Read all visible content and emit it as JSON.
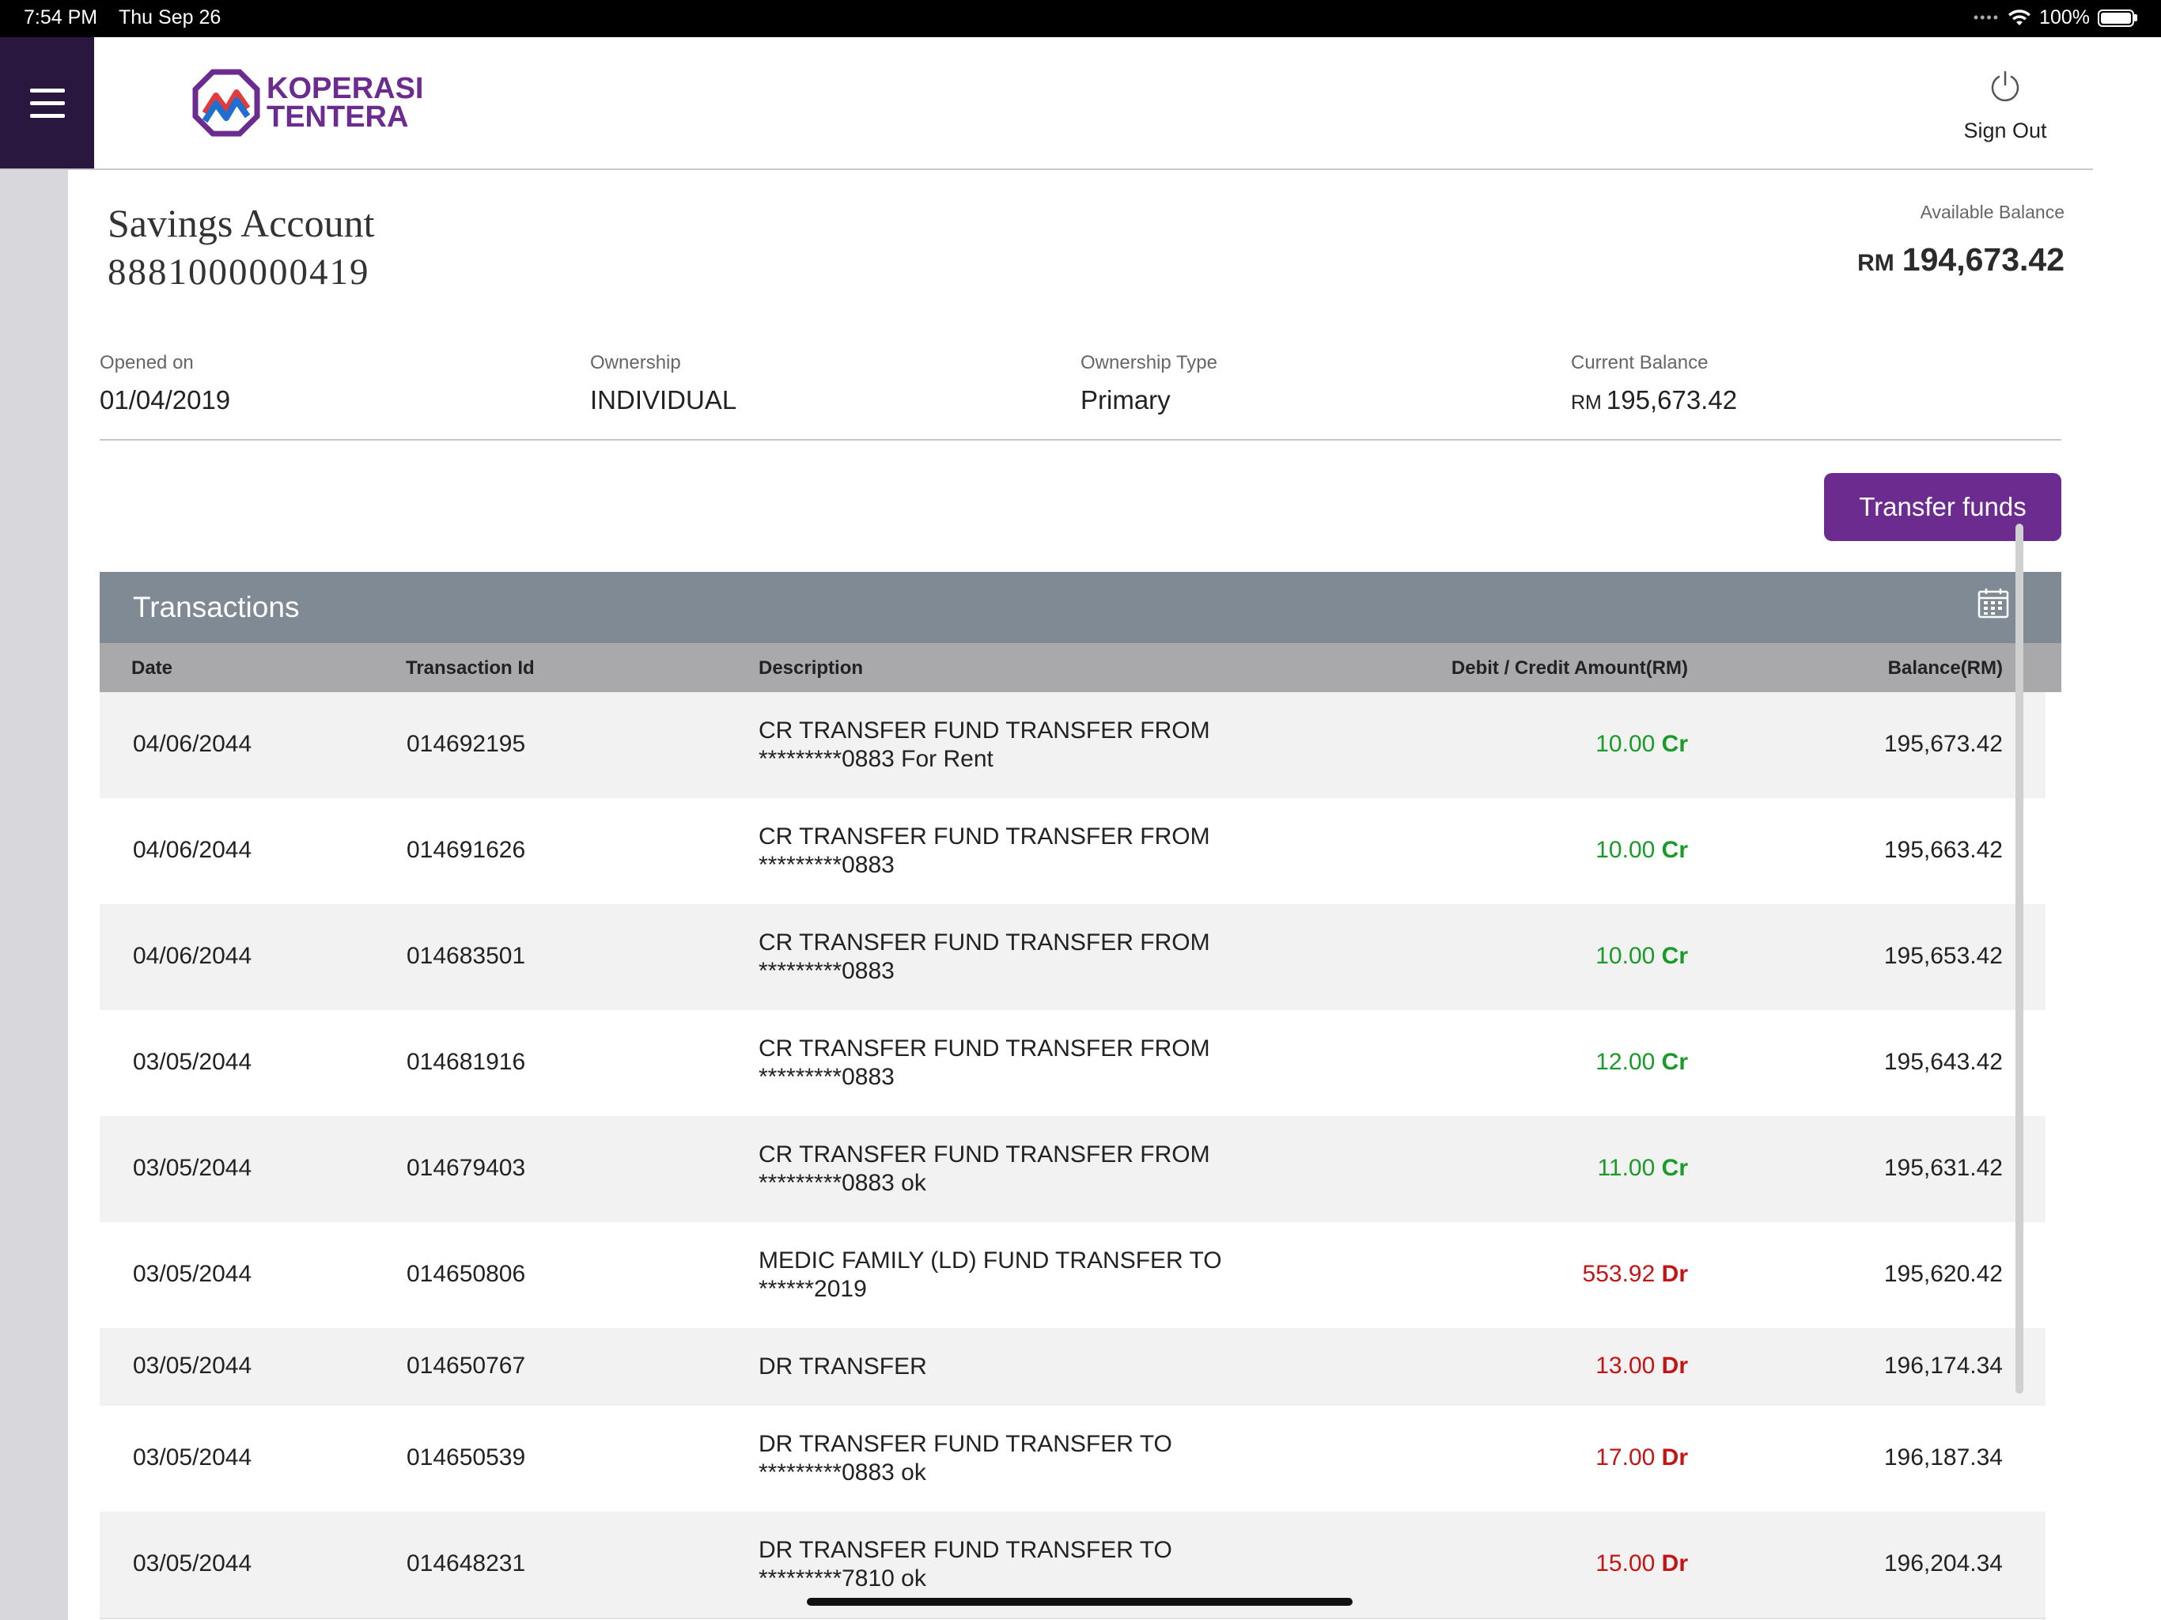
{
  "status_bar": {
    "time": "7:54 PM",
    "date": "Thu Sep 26",
    "battery": "100%"
  },
  "header": {
    "logo_line1": "KOPERASI",
    "logo_line2": "TENTERA",
    "sign_out": "Sign Out",
    "icons": {
      "menu": "menu-icon",
      "power": "power-icon"
    }
  },
  "account": {
    "title": "Savings Account",
    "number": "8881000000419",
    "available_label": "Available Balance",
    "available_currency": "RM",
    "available_amount": "194,673.42",
    "opened_label": "Opened on",
    "opened_value": "01/04/2019",
    "ownership_label": "Ownership",
    "ownership_value": "INDIVIDUAL",
    "ownership_type_label": "Ownership Type",
    "ownership_type_value": "Primary",
    "current_label": "Current Balance",
    "current_currency": "RM",
    "current_amount": "195,673.42"
  },
  "transfer_button": "Transfer funds",
  "transactions": {
    "title": "Transactions",
    "calendar_icon": "calendar-icon",
    "columns": {
      "date": "Date",
      "id": "Transaction Id",
      "description": "Description",
      "amount": "Debit / Credit Amount(RM)",
      "balance": "Balance(RM)"
    },
    "rows": [
      {
        "date": "04/06/2044",
        "id": "014692195",
        "desc1": "CR TRANSFER FUND TRANSFER FROM",
        "desc2": "*********0883 For Rent",
        "amount": "10.00",
        "type": "Cr",
        "balance": "195,673.42"
      },
      {
        "date": "04/06/2044",
        "id": "014691626",
        "desc1": "CR TRANSFER FUND TRANSFER FROM",
        "desc2": "*********0883",
        "amount": "10.00",
        "type": "Cr",
        "balance": "195,663.42"
      },
      {
        "date": "04/06/2044",
        "id": "014683501",
        "desc1": "CR TRANSFER FUND TRANSFER FROM",
        "desc2": "*********0883",
        "amount": "10.00",
        "type": "Cr",
        "balance": "195,653.42"
      },
      {
        "date": "03/05/2044",
        "id": "014681916",
        "desc1": "CR TRANSFER FUND TRANSFER FROM",
        "desc2": "*********0883",
        "amount": "12.00",
        "type": "Cr",
        "balance": "195,643.42"
      },
      {
        "date": "03/05/2044",
        "id": "014679403",
        "desc1": "CR TRANSFER FUND TRANSFER FROM",
        "desc2": "*********0883 ok",
        "amount": "11.00",
        "type": "Cr",
        "balance": "195,631.42"
      },
      {
        "date": "03/05/2044",
        "id": "014650806",
        "desc1": "MEDIC FAMILY (LD) FUND TRANSFER TO",
        "desc2": "******2019",
        "amount": "553.92",
        "type": "Dr",
        "balance": "195,620.42"
      },
      {
        "date": "03/05/2044",
        "id": "014650767",
        "desc1": "DR TRANSFER",
        "desc2": "",
        "amount": "13.00",
        "type": "Dr",
        "balance": "196,174.34"
      },
      {
        "date": "03/05/2044",
        "id": "014650539",
        "desc1": "DR TRANSFER FUND TRANSFER TO",
        "desc2": "*********0883 ok",
        "amount": "17.00",
        "type": "Dr",
        "balance": "196,187.34"
      },
      {
        "date": "03/05/2044",
        "id": "014648231",
        "desc1": "DR TRANSFER FUND TRANSFER TO",
        "desc2": "*********7810 ok",
        "amount": "15.00",
        "type": "Dr",
        "balance": "196,204.34"
      }
    ]
  }
}
